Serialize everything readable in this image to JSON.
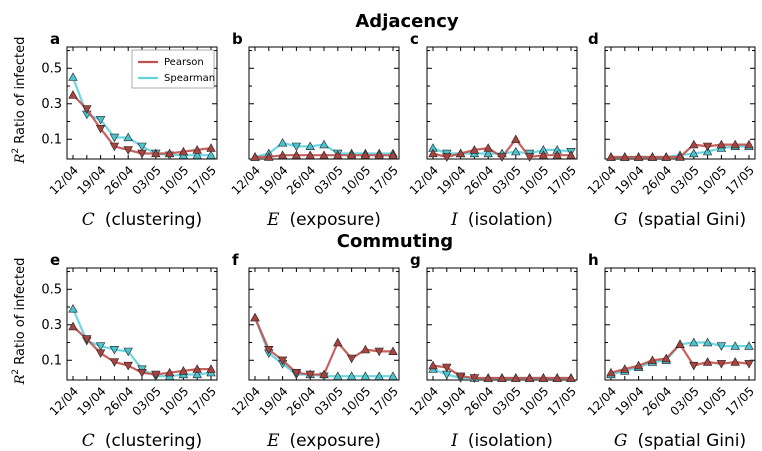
{
  "figure": {
    "sections": [
      {
        "title": "Adjacency",
        "ylabel_r2": "R",
        "ylabel_sup": "2",
        "ylabel_rest": " Ratio of infected"
      },
      {
        "title": "Commuting",
        "ylabel_r2": "R",
        "ylabel_sup": "2",
        "ylabel_rest": " Ratio of infected"
      }
    ],
    "legend": {
      "pearson": "Pearson",
      "spearman": "Spearman"
    },
    "colors": {
      "pearson": "#c0504d",
      "spearman": "#5fd3de",
      "pearson_marker": "#a84440",
      "spearman_marker": "#4cc3cf"
    },
    "x_tick_labels": [
      "12/04",
      "19/04",
      "26/04",
      "03/05",
      "10/05",
      "17/05"
    ],
    "y_tick_labels": [
      "0.1",
      "0.3",
      "0.5"
    ]
  },
  "chart_data": [
    {
      "type": "line",
      "panel": "a",
      "title": "",
      "xsymbol": "C",
      "xword": "(clustering)",
      "ylabel": "R2 Ratio of infected",
      "ylim": [
        0,
        0.62
      ],
      "series": [
        {
          "name": "Pearson",
          "values": [
            0.35,
            0.27,
            0.16,
            0.06,
            0.04,
            0.02,
            0.02,
            0.02,
            0.03,
            0.04,
            0.05
          ]
        },
        {
          "name": "Spearman",
          "values": [
            0.45,
            0.24,
            0.21,
            0.11,
            0.11,
            0.06,
            0.02,
            0.01,
            0.01,
            0.01,
            0.01
          ]
        }
      ]
    },
    {
      "type": "line",
      "panel": "b",
      "title": "",
      "xsymbol": "E",
      "xword": "(exposure)",
      "ylabel": "",
      "ylim": [
        0,
        0.62
      ],
      "series": [
        {
          "name": "Pearson",
          "values": [
            0.0,
            0.0,
            0.01,
            0.01,
            0.01,
            0.01,
            0.01,
            0.01,
            0.01,
            0.01,
            0.01
          ]
        },
        {
          "name": "Spearman",
          "values": [
            0.0,
            0.02,
            0.08,
            0.06,
            0.06,
            0.07,
            0.02,
            0.02,
            0.02,
            0.02,
            0.02
          ]
        }
      ]
    },
    {
      "type": "line",
      "panel": "c",
      "title": "",
      "xsymbol": "I",
      "xword": "(isolation)",
      "ylabel": "",
      "ylim": [
        0,
        0.62
      ],
      "series": [
        {
          "name": "Pearson",
          "values": [
            0.02,
            0.0,
            0.02,
            0.04,
            0.05,
            0.0,
            0.1,
            0.0,
            0.01,
            0.01,
            0.01
          ]
        },
        {
          "name": "Spearman",
          "values": [
            0.05,
            0.02,
            0.02,
            0.02,
            0.02,
            0.02,
            0.03,
            0.02,
            0.04,
            0.04,
            0.03
          ]
        }
      ]
    },
    {
      "type": "line",
      "panel": "d",
      "title": "",
      "xsymbol": "G",
      "xword": "(spatial Gini)",
      "ylabel": "",
      "ylim": [
        0,
        0.62
      ],
      "series": [
        {
          "name": "Pearson",
          "values": [
            0.0,
            0.0,
            0.0,
            0.0,
            0.0,
            0.0,
            0.07,
            0.06,
            0.07,
            0.07,
            0.07
          ]
        },
        {
          "name": "Spearman",
          "values": [
            0.0,
            0.0,
            0.0,
            0.0,
            0.0,
            0.01,
            0.02,
            0.03,
            0.05,
            0.06,
            0.06
          ]
        }
      ]
    },
    {
      "type": "line",
      "panel": "e",
      "title": "",
      "xsymbol": "C",
      "xword": "(clustering)",
      "ylabel": "R2 Ratio of infected",
      "ylim": [
        0,
        0.62
      ],
      "series": [
        {
          "name": "Pearson",
          "values": [
            0.29,
            0.22,
            0.14,
            0.09,
            0.07,
            0.03,
            0.02,
            0.03,
            0.04,
            0.05,
            0.05
          ]
        },
        {
          "name": "Spearman",
          "values": [
            0.39,
            0.21,
            0.18,
            0.16,
            0.15,
            0.05,
            0.01,
            0.01,
            0.02,
            0.02,
            0.03
          ]
        }
      ]
    },
    {
      "type": "line",
      "panel": "f",
      "title": "",
      "xsymbol": "E",
      "xword": "(exposure)",
      "ylabel": "",
      "ylim": [
        0,
        0.62
      ],
      "series": [
        {
          "name": "Pearson",
          "values": [
            0.34,
            0.16,
            0.1,
            0.03,
            0.02,
            0.02,
            0.2,
            0.11,
            0.16,
            0.15,
            0.15
          ]
        },
        {
          "name": "Spearman",
          "values": [
            0.34,
            0.14,
            0.08,
            0.02,
            0.02,
            0.01,
            0.01,
            0.01,
            0.01,
            0.01,
            0.01
          ]
        }
      ]
    },
    {
      "type": "line",
      "panel": "g",
      "title": "",
      "xsymbol": "I",
      "xword": "(isolation)",
      "ylabel": "",
      "ylim": [
        0,
        0.62
      ],
      "series": [
        {
          "name": "Pearson",
          "values": [
            0.07,
            0.06,
            0.01,
            0.0,
            0.0,
            0.0,
            0.0,
            0.0,
            0.0,
            0.0,
            0.0
          ]
        },
        {
          "name": "Spearman",
          "values": [
            0.05,
            0.02,
            0.0,
            0.0,
            0.0,
            0.0,
            0.0,
            0.0,
            0.0,
            0.0,
            0.0
          ]
        }
      ]
    },
    {
      "type": "line",
      "panel": "h",
      "title": "",
      "xsymbol": "G",
      "xword": "(spatial Gini)",
      "ylabel": "",
      "ylim": [
        0,
        0.62
      ],
      "series": [
        {
          "name": "Pearson",
          "values": [
            0.03,
            0.05,
            0.07,
            0.1,
            0.11,
            0.19,
            0.07,
            0.09,
            0.08,
            0.09,
            0.08
          ]
        },
        {
          "name": "Spearman",
          "values": [
            0.02,
            0.04,
            0.06,
            0.09,
            0.1,
            0.19,
            0.2,
            0.2,
            0.18,
            0.18,
            0.18
          ]
        }
      ]
    }
  ]
}
